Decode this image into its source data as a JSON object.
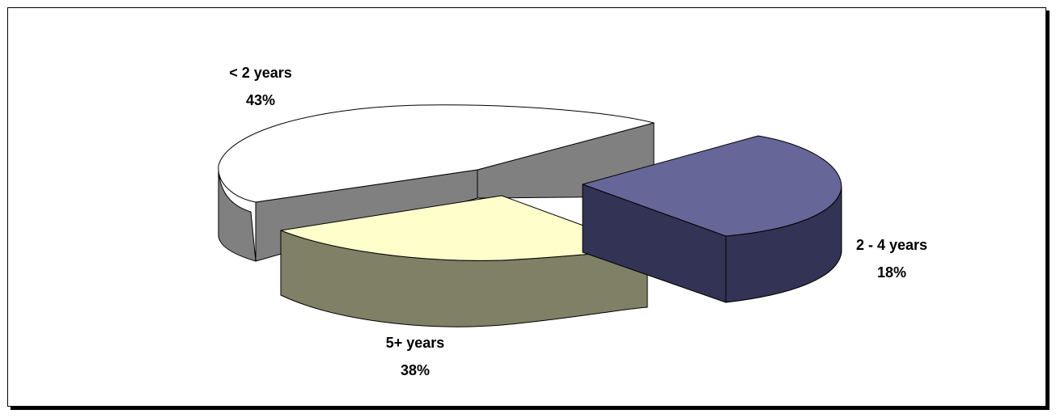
{
  "chart_data": {
    "type": "pie",
    "title": "",
    "three_d": true,
    "slices": [
      {
        "label": "< 2 years",
        "value": 43,
        "value_label": "43%",
        "top_color": "#FFFFFF",
        "side_color": "#808080"
      },
      {
        "label": "2 - 4 years",
        "value": 18,
        "value_label": "18%",
        "top_color": "#666699",
        "side_color": "#333355"
      },
      {
        "label": "5+ years",
        "value": 38,
        "value_label": "38%",
        "top_color": "#FFFFCC",
        "side_color": "#808066"
      }
    ]
  }
}
